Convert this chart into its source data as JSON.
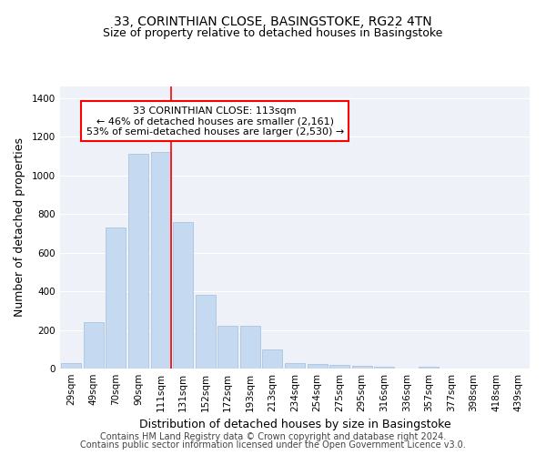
{
  "title": "33, CORINTHIAN CLOSE, BASINGSTOKE, RG22 4TN",
  "subtitle": "Size of property relative to detached houses in Basingstoke",
  "xlabel": "Distribution of detached houses by size in Basingstoke",
  "ylabel": "Number of detached properties",
  "categories": [
    "29sqm",
    "49sqm",
    "70sqm",
    "90sqm",
    "111sqm",
    "131sqm",
    "152sqm",
    "172sqm",
    "193sqm",
    "213sqm",
    "234sqm",
    "254sqm",
    "275sqm",
    "295sqm",
    "316sqm",
    "336sqm",
    "357sqm",
    "377sqm",
    "398sqm",
    "418sqm",
    "439sqm"
  ],
  "values": [
    30,
    240,
    730,
    1110,
    1120,
    760,
    380,
    220,
    220,
    100,
    30,
    25,
    20,
    15,
    10,
    0,
    10,
    0,
    0,
    0,
    0
  ],
  "bar_color": "#c5d9f0",
  "bar_edge_color": "#a0bedd",
  "red_line_label": "33 CORINTHIAN CLOSE: 113sqm",
  "annotation_line1": "← 46% of detached houses are smaller (2,161)",
  "annotation_line2": "53% of semi-detached houses are larger (2,530) →",
  "annotation_box_color": "white",
  "annotation_box_edge": "red",
  "ylim": [
    0,
    1460
  ],
  "yticks": [
    0,
    200,
    400,
    600,
    800,
    1000,
    1200,
    1400
  ],
  "background_color": "#eef2f8",
  "grid_color": "#ffffff",
  "footer_line1": "Contains HM Land Registry data © Crown copyright and database right 2024.",
  "footer_line2": "Contains public sector information licensed under the Open Government Licence v3.0.",
  "title_fontsize": 10,
  "subtitle_fontsize": 9,
  "xlabel_fontsize": 9,
  "ylabel_fontsize": 9,
  "tick_fontsize": 7.5,
  "annotation_fontsize": 8,
  "footer_fontsize": 7
}
